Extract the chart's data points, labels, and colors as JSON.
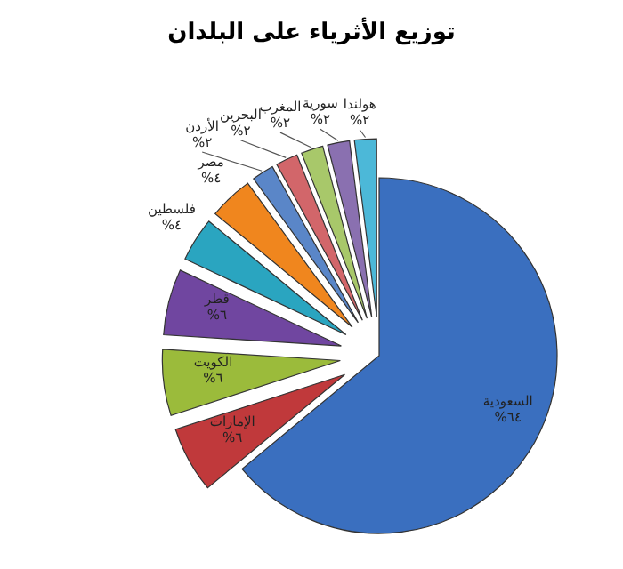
{
  "chart_data": {
    "type": "pie",
    "title": "توزيع الأثرياء على البلدان",
    "categories": [
      "السعودية",
      "الإمارات",
      "الكويت",
      "قطر",
      "فلسطين",
      "مصر",
      "الأردن",
      "البحرين",
      "المغرب",
      "سورية",
      "هولندا"
    ],
    "values": [
      64,
      6,
      6,
      6,
      4,
      4,
      2,
      2,
      2,
      2,
      2
    ],
    "value_labels": [
      "٦٤%",
      "٦%",
      "٦%",
      "٦%",
      "٤%",
      "٤%",
      "٢%",
      "٢%",
      "٢%",
      "٢%",
      "٢%"
    ],
    "colors": [
      "#3a6fbf",
      "#c0393b",
      "#9bbb3b",
      "#7046a0",
      "#2aa5c0",
      "#f0861e",
      "#5a86c8",
      "#d2666a",
      "#a8c86a",
      "#8a70b0",
      "#4cb8d8"
    ],
    "legend": false
  }
}
